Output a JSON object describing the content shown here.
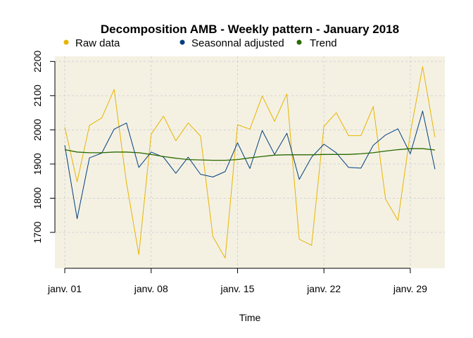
{
  "chart_data": {
    "type": "line",
    "title": "Decomposition AMB - Weekly pattern - January 2018",
    "xlabel": "Time",
    "ylabel": "",
    "x_tick_labels": [
      "janv. 01",
      "janv. 08",
      "janv. 15",
      "janv. 22",
      "janv. 29"
    ],
    "x_tick_days": [
      1,
      8,
      15,
      22,
      29
    ],
    "y_ticks": [
      1700,
      1800,
      1900,
      2000,
      2100,
      2200
    ],
    "xlim": [
      0.2,
      31.8
    ],
    "ylim": [
      1595,
      2215
    ],
    "grid": true,
    "background_color": "#f4f1e3",
    "legend_position": "top",
    "x": [
      1,
      2,
      3,
      4,
      5,
      6,
      7,
      8,
      9,
      10,
      11,
      12,
      13,
      14,
      15,
      16,
      17,
      18,
      19,
      20,
      21,
      22,
      23,
      24,
      25,
      26,
      27,
      28,
      29,
      30,
      31
    ],
    "series": [
      {
        "name": "Raw data",
        "color": "#e8b400",
        "values": [
          2008,
          1848,
          2013,
          2035,
          2118,
          1845,
          1635,
          1987,
          2040,
          1968,
          2020,
          1982,
          1688,
          1625,
          2015,
          2002,
          2099,
          2025,
          2105,
          1680,
          1662,
          2010,
          2050,
          1983,
          1983,
          2068,
          1797,
          1735,
          1990,
          2185,
          1978
        ]
      },
      {
        "name": "Seasonnal adjusted",
        "color": "#003f7f",
        "values": [
          1955,
          1740,
          1918,
          1932,
          2002,
          2020,
          1890,
          1935,
          1920,
          1873,
          1920,
          1870,
          1862,
          1878,
          1962,
          1887,
          1998,
          1928,
          1990,
          1855,
          1920,
          1958,
          1933,
          1890,
          1888,
          1955,
          1985,
          2003,
          1930,
          2055,
          1885
        ]
      },
      {
        "name": "Trend",
        "color": "#2a6a00",
        "values": [
          1942,
          1935,
          1933,
          1933,
          1935,
          1935,
          1933,
          1928,
          1922,
          1917,
          1913,
          1912,
          1911,
          1911,
          1913,
          1918,
          1922,
          1926,
          1927,
          1927,
          1927,
          1928,
          1928,
          1928,
          1930,
          1933,
          1938,
          1942,
          1945,
          1945,
          1941
        ]
      }
    ]
  }
}
